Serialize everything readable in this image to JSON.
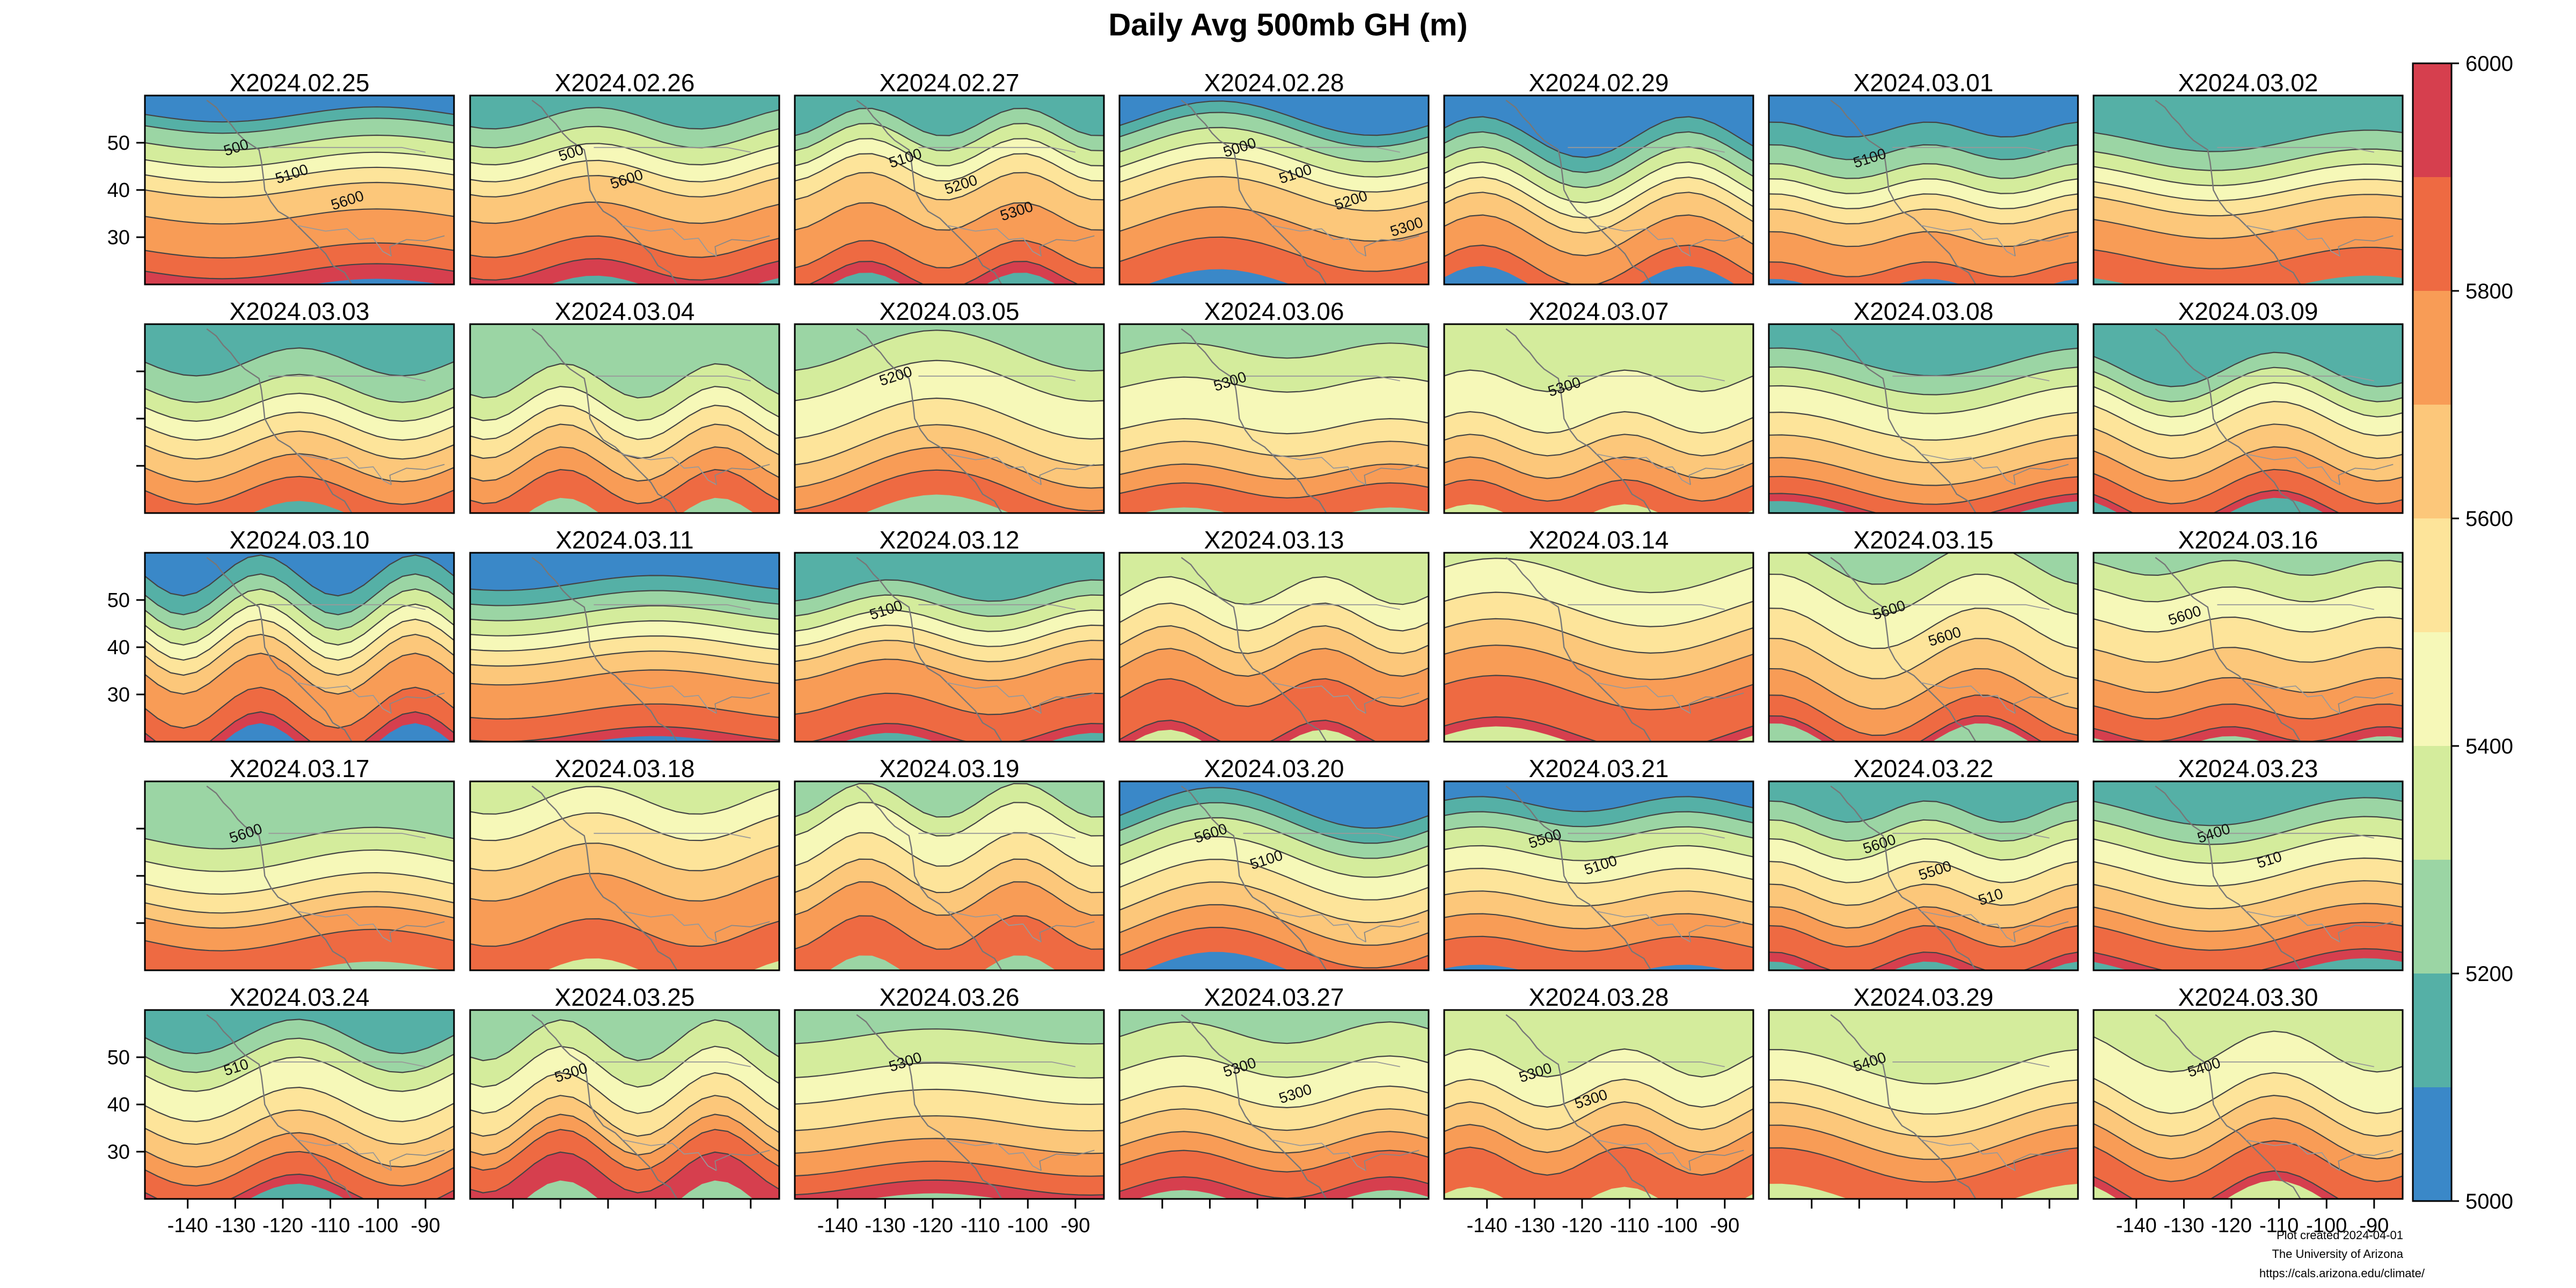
{
  "title": "Daily Avg 500mb GH (m)",
  "colors": {
    "5000": "#3a88c8",
    "5100": "#55b0a6",
    "5200": "#9bd5a4",
    "5300": "#d4ec9c",
    "5400": "#f6f8b8",
    "5500": "#fde49a",
    "5600": "#fcc77a",
    "5700": "#f89c56",
    "5800": "#ee6a42",
    "5900": "#d63f4e"
  },
  "colorbar": {
    "levels": [
      5000,
      5100,
      5200,
      5300,
      5400,
      5500,
      5600,
      5700,
      5800,
      5900,
      6000
    ],
    "labels": [
      "5000",
      "5200",
      "5400",
      "5600",
      "5800",
      "6000"
    ]
  },
  "axes": {
    "lon_ticks": [
      "-140",
      "-130",
      "-120",
      "-110",
      "-100",
      "-90"
    ],
    "lat_ticks": [
      "50",
      "40",
      "30"
    ]
  },
  "panels": [
    {
      "date": "X2024.02.25",
      "labels": [
        "500",
        "5100",
        "5600"
      ]
    },
    {
      "date": "X2024.02.26",
      "labels": [
        "500",
        "5600"
      ]
    },
    {
      "date": "X2024.02.27",
      "labels": [
        "5100",
        "5200",
        "5300"
      ]
    },
    {
      "date": "X2024.02.28",
      "labels": [
        "5000",
        "5100",
        "5200",
        "5300"
      ]
    },
    {
      "date": "X2024.02.29",
      "labels": []
    },
    {
      "date": "X2024.03.01",
      "labels": [
        "5100"
      ]
    },
    {
      "date": "X2024.03.02",
      "labels": []
    },
    {
      "date": "X2024.03.03",
      "labels": []
    },
    {
      "date": "X2024.03.04",
      "labels": []
    },
    {
      "date": "X2024.03.05",
      "labels": [
        "5200"
      ]
    },
    {
      "date": "X2024.03.06",
      "labels": [
        "5300"
      ]
    },
    {
      "date": "X2024.03.07",
      "labels": [
        "5300"
      ]
    },
    {
      "date": "X2024.03.08",
      "labels": []
    },
    {
      "date": "X2024.03.09",
      "labels": []
    },
    {
      "date": "X2024.03.10",
      "labels": []
    },
    {
      "date": "X2024.03.11",
      "labels": []
    },
    {
      "date": "X2024.03.12",
      "labels": [
        "5100"
      ]
    },
    {
      "date": "X2024.03.13",
      "labels": []
    },
    {
      "date": "X2024.03.14",
      "labels": []
    },
    {
      "date": "X2024.03.15",
      "labels": [
        "5600",
        "5600"
      ]
    },
    {
      "date": "X2024.03.16",
      "labels": [
        "5600"
      ]
    },
    {
      "date": "X2024.03.17",
      "labels": [
        "5600"
      ]
    },
    {
      "date": "X2024.03.18",
      "labels": []
    },
    {
      "date": "X2024.03.19",
      "labels": []
    },
    {
      "date": "X2024.03.20",
      "labels": [
        "5600",
        "5100"
      ]
    },
    {
      "date": "X2024.03.21",
      "labels": [
        "5500",
        "5100"
      ]
    },
    {
      "date": "X2024.03.22",
      "labels": [
        "5600",
        "5500",
        "510"
      ]
    },
    {
      "date": "X2024.03.23",
      "labels": [
        "5400",
        "510"
      ]
    },
    {
      "date": "X2024.03.24",
      "labels": [
        "510"
      ]
    },
    {
      "date": "X2024.03.25",
      "labels": [
        "5300"
      ]
    },
    {
      "date": "X2024.03.26",
      "labels": [
        "5300"
      ]
    },
    {
      "date": "X2024.03.27",
      "labels": [
        "5300",
        "5300"
      ]
    },
    {
      "date": "X2024.03.28",
      "labels": [
        "5300",
        "5300"
      ]
    },
    {
      "date": "X2024.03.29",
      "labels": [
        "5400"
      ]
    },
    {
      "date": "X2024.03.30",
      "labels": [
        "5400"
      ]
    }
  ],
  "credit": {
    "line1": "Plot created 2024-04-01",
    "line2": "The University of Arizona",
    "line3": "https://cals.arizona.edu/climate/"
  }
}
